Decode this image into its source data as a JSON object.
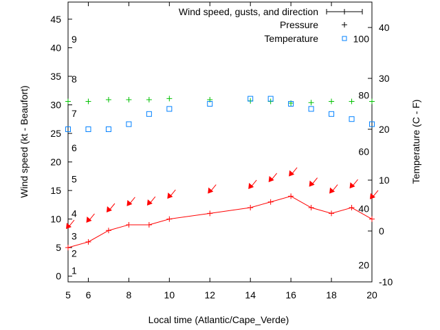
{
  "chart_data": {
    "type": "line",
    "xlabel": "Local time (Atlantic/Cape_Verde)",
    "ylabel": "Wind speed (kt - Beaufort)",
    "y2label": "Temperature (C - F)",
    "xlim": [
      5,
      20
    ],
    "ylim": [
      -1,
      48
    ],
    "y2lim": [
      -10,
      45
    ],
    "xticks": [
      6,
      8,
      10,
      12,
      14,
      16,
      18,
      20
    ],
    "xtick_labels": [
      "6",
      "8",
      "10",
      "12",
      "14",
      "16",
      "18",
      "20"
    ],
    "yticks": [
      0,
      5,
      10,
      15,
      20,
      25,
      30,
      35,
      40,
      45
    ],
    "ytick_labels": [
      "0",
      "5",
      "10",
      "15",
      "20",
      "25",
      "30",
      "35",
      "40",
      "45"
    ],
    "y2ticks": [
      -10,
      0,
      10,
      20,
      30,
      40
    ],
    "y2tick_labels": [
      "-10",
      "0",
      "10",
      "20",
      "30",
      "40"
    ],
    "beaufort_labels": [
      {
        "text": "1",
        "y": 1
      },
      {
        "text": "2",
        "y": 4
      },
      {
        "text": "3",
        "y": 7
      },
      {
        "text": "4",
        "y": 11
      },
      {
        "text": "5",
        "y": 17
      },
      {
        "text": "6",
        "y": 22.5
      },
      {
        "text": "7",
        "y": 28.5
      },
      {
        "text": "8",
        "y": 34.5
      },
      {
        "text": "9",
        "y": 41.5
      }
    ],
    "fahrenheit_labels": [
      {
        "text": "100",
        "y": 37.8
      },
      {
        "text": "80",
        "y": 26.7
      },
      {
        "text": "60",
        "y": 15.6
      },
      {
        "text": "40",
        "y": 4.4
      },
      {
        "text": "20",
        "y": -6.7
      }
    ],
    "legend": {
      "position": "top-right",
      "entries": [
        "Wind speed, gusts, and direction",
        "Pressure",
        "Temperature"
      ]
    },
    "x": [
      5,
      6,
      7,
      8,
      9,
      10,
      12,
      14,
      15,
      16,
      17,
      18,
      19,
      20
    ],
    "series": [
      {
        "name": "Wind speed, gusts, and direction",
        "color": "#ff0000",
        "axis": "y",
        "values": [
          5,
          6,
          8,
          9,
          9,
          10,
          11,
          12,
          13,
          14,
          12,
          11,
          12,
          10
        ],
        "gusts": [
          8.5,
          9.6,
          11.4,
          12.5,
          12.6,
          13.8,
          14.7,
          15.5,
          16.7,
          17.7,
          15.9,
          14.7,
          15.6,
          13.7
        ],
        "direction": "from NE"
      },
      {
        "name": "Pressure",
        "color": "#00c000",
        "axis": "y",
        "values": [
          30.6,
          30.6,
          30.9,
          30.9,
          30.9,
          31.1,
          30.9,
          30.7,
          30.6,
          30.3,
          30.4,
          30.6,
          30.6,
          30.6
        ]
      },
      {
        "name": "Temperature",
        "color": "#0080ff",
        "axis": "y2",
        "values": [
          20,
          20,
          20,
          21,
          23,
          24,
          25,
          26,
          26,
          25,
          24,
          23,
          22,
          21
        ]
      }
    ]
  }
}
